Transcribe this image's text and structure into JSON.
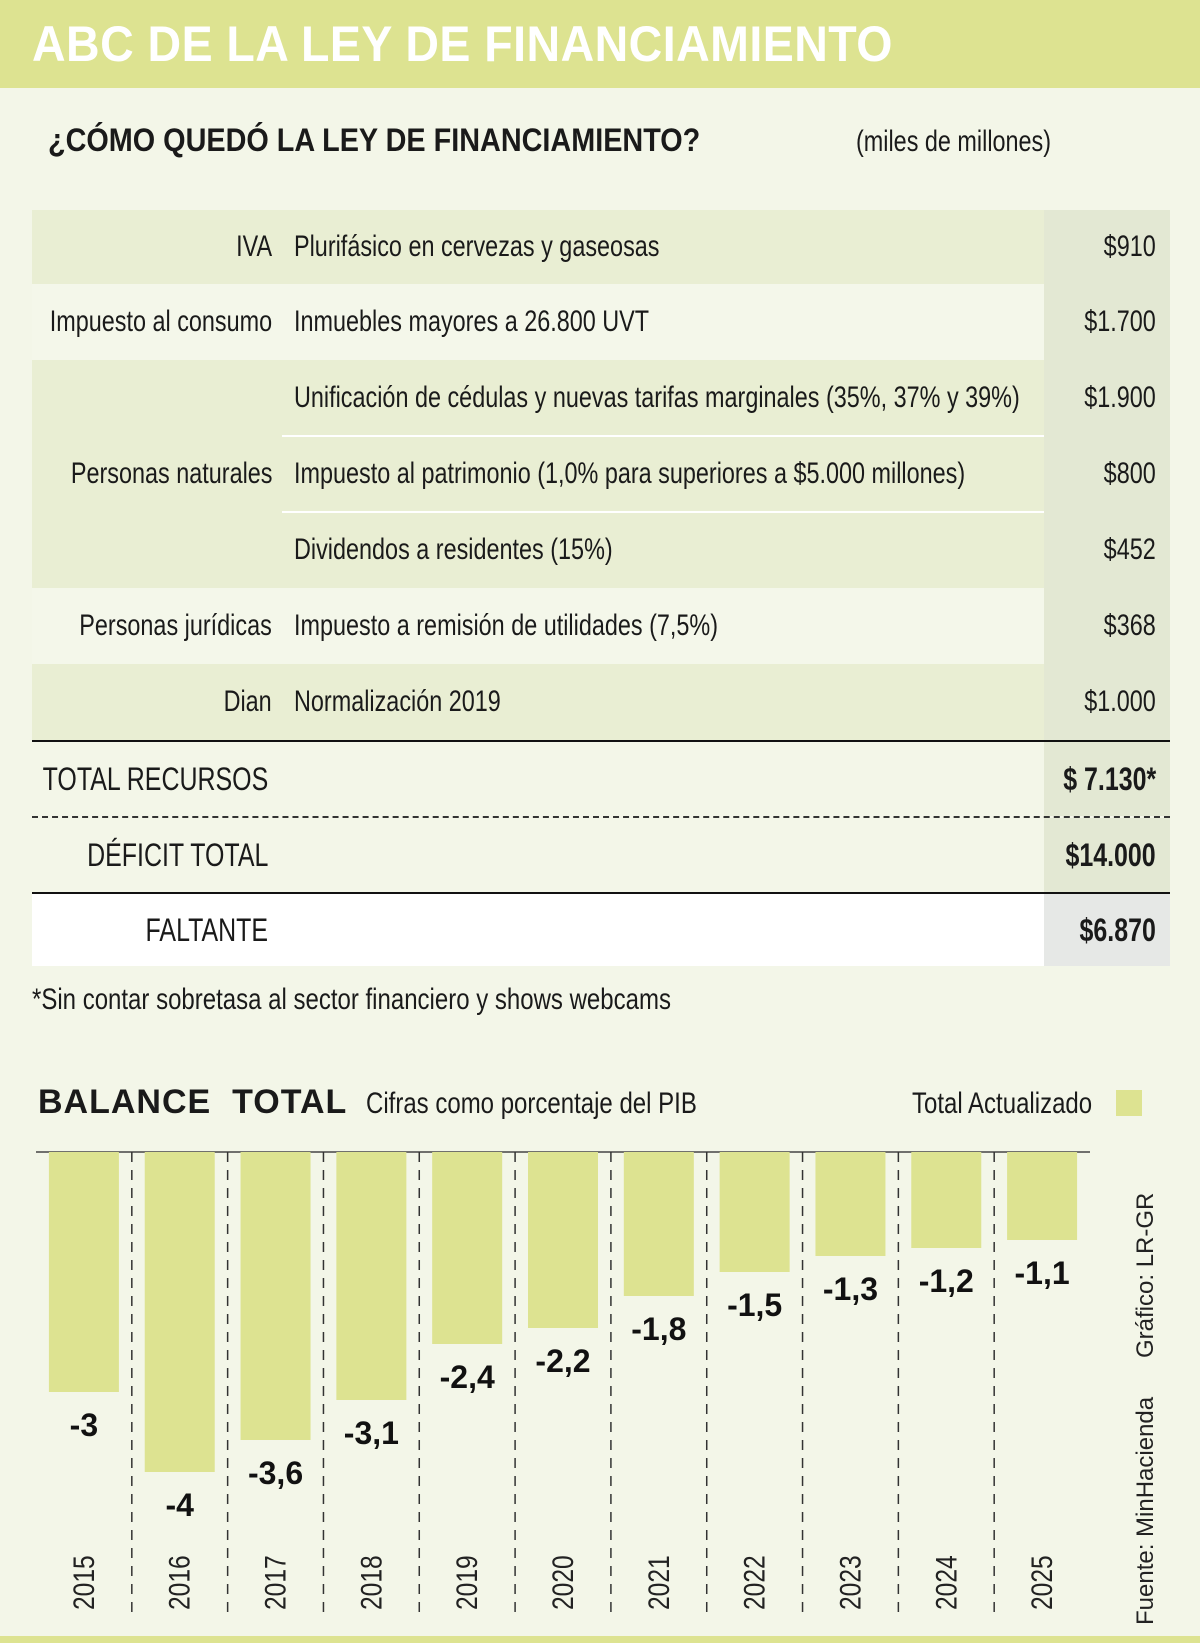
{
  "banner": {
    "title": "ABC DE LA LEY DE FINANCIAMIENTO"
  },
  "table_section": {
    "title": "¿CÓMO QUEDÓ LA LEY DE FINANCIAMIENTO?",
    "unit": "(miles de millones)",
    "rows": [
      {
        "category": "IVA",
        "description": "Plurifásico en cervezas y gaseosas",
        "value": "$910"
      },
      {
        "category": "Impuesto al consumo",
        "description": "Inmuebles mayores a 26.800 UVT",
        "value": "$1.700"
      },
      {
        "category": "",
        "description": "Unificación de cédulas y nuevas tarifas marginales (35%, 37% y 39%)",
        "value": "$1.900"
      },
      {
        "category": "Personas naturales",
        "description": "Impuesto al patrimonio (1,0% para superiores a $5.000 millones)",
        "value": "$800"
      },
      {
        "category": "",
        "description": "Dividendos a residentes (15%)",
        "value": "$452"
      },
      {
        "category": "Personas jurídicas",
        "description": "Impuesto a remisión de utilidades (7,5%)",
        "value": "$368"
      },
      {
        "category": "Dian",
        "description": "Normalización 2019",
        "value": "$1.000"
      }
    ],
    "total_recursos": {
      "label": "TOTAL RECURSOS",
      "value": "$ 7.130*"
    },
    "deficit_total": {
      "label": "DÉFICIT TOTAL",
      "value": "$14.000"
    },
    "faltante": {
      "label": "FALTANTE",
      "value": "$6.870"
    },
    "footnote": "*Sin contar sobretasa al sector financiero y shows webcams"
  },
  "chart_header": {
    "title": "BALANCE  TOTAL",
    "subtitle": "Cifras como porcentaje del PIB",
    "legend_label": "Total Actualizado"
  },
  "credits": {
    "graphic": "Gráfico: LR-GR",
    "source": "Fuente: MinHacienda"
  },
  "colors": {
    "bar": "#dde391",
    "banner": "#dde391",
    "background": "#f3f6e8"
  },
  "chart_data": {
    "type": "bar",
    "title": "BALANCE  TOTAL",
    "subtitle": "Cifras como porcentaje del PIB",
    "categories": [
      "2015",
      "2016",
      "2017",
      "2018",
      "2019",
      "2020",
      "2021",
      "2022",
      "2023",
      "2024",
      "2025"
    ],
    "series": [
      {
        "name": "Total Actualizado",
        "values": [
          -3,
          -4,
          -3.6,
          -3.1,
          -2.4,
          -2.2,
          -1.8,
          -1.5,
          -1.3,
          -1.2,
          -1.1
        ]
      }
    ],
    "value_labels": [
      "-3",
      "-4",
      "-3,6",
      "-3,1",
      "-2,4",
      "-2,2",
      "-1,8",
      "-1,5",
      "-1,3",
      "-1,2",
      "-1,1"
    ],
    "ylim": [
      -4,
      0
    ],
    "legend": "top-right",
    "xlabel": "",
    "ylabel": ""
  }
}
